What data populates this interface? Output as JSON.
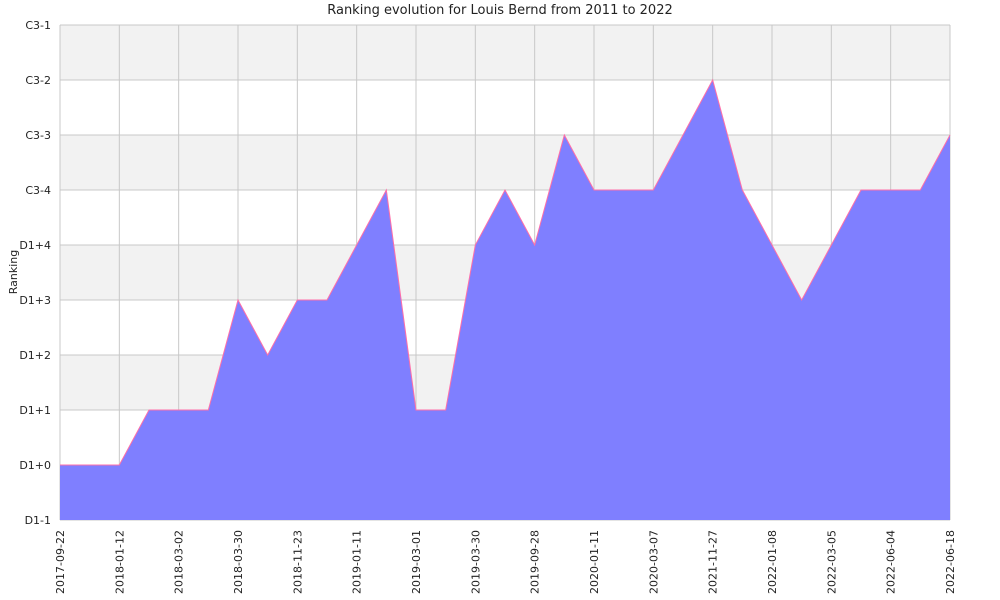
{
  "chart_data": {
    "type": "area",
    "title": "Ranking evolution for Louis Bernd from 2011 to 2022",
    "xlabel": "",
    "ylabel": "Ranking",
    "y_categories": [
      "D1-1",
      "D1+0",
      "D1+1",
      "D1+2",
      "D1+3",
      "D1+4",
      "C3-4",
      "C3-3",
      "C3-2",
      "C3-1"
    ],
    "x_tick_labels": [
      "2017-09-22",
      "2018-01-12",
      "2018-03-02",
      "2018-03-30",
      "2018-11-23",
      "2019-01-11",
      "2019-03-01",
      "2019-03-30",
      "2019-09-28",
      "2020-01-11",
      "2020-03-07",
      "2021-11-27",
      "2022-01-08",
      "2022-03-05",
      "2022-06-04",
      "2022-06-18"
    ],
    "series": [
      {
        "values": [
          "D1+0",
          "D1+0",
          "D1+0",
          "D1+1",
          "D1+1",
          "D1+1",
          "D1+3",
          "D1+2",
          "D1+3",
          "D1+3",
          "D1+4",
          "C3-4",
          "D1+1",
          "D1+1",
          "D1+4",
          "C3-4",
          "D1+4",
          "C3-3",
          "C3-4",
          "C3-4",
          "C3-4",
          "C3-3",
          "C3-2",
          "C3-4",
          "D1+4",
          "D1+3",
          "D1+4",
          "C3-4",
          "C3-4",
          "C3-4",
          "C3-3"
        ]
      }
    ],
    "colors": {
      "fill": "#7f7fff",
      "line": "#ff6fa8",
      "grid": "#c8c8c8",
      "band": "#f2f2f2"
    },
    "grid": true,
    "legend": "none"
  }
}
